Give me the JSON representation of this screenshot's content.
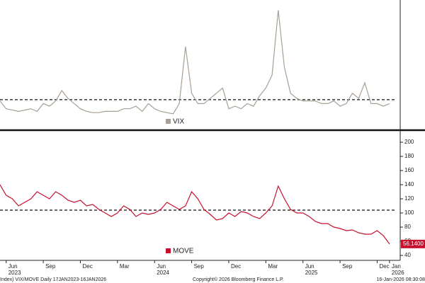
{
  "chart_data": [
    {
      "type": "line",
      "series": [
        {
          "name": "VIX",
          "color": "#a89f94",
          "values": [
            17,
            14,
            13.5,
            13,
            13.5,
            14,
            13,
            16,
            15,
            17,
            21,
            18,
            16,
            14,
            13,
            12.5,
            12.5,
            13,
            13,
            13,
            14,
            14,
            15,
            13,
            16,
            14,
            13,
            12.5,
            12,
            16,
            38,
            20,
            16,
            16,
            18,
            20,
            22,
            14,
            15,
            14,
            16,
            15,
            19,
            22,
            27,
            52,
            30,
            20,
            18,
            17,
            17,
            17,
            16,
            16,
            17,
            15,
            16,
            20,
            18,
            24,
            16,
            16,
            15,
            16
          ]
        }
      ],
      "reference_line": 17.5,
      "ylim": [
        6,
        56
      ]
    },
    {
      "type": "line",
      "series": [
        {
          "name": "MOVE",
          "color": "#c8102e",
          "values": [
            140,
            125,
            120,
            110,
            115,
            120,
            130,
            125,
            120,
            130,
            125,
            118,
            115,
            118,
            110,
            112,
            105,
            100,
            95,
            100,
            110,
            105,
            95,
            100,
            98,
            100,
            105,
            115,
            110,
            105,
            110,
            130,
            120,
            105,
            98,
            90,
            92,
            100,
            95,
            102,
            100,
            95,
            92,
            100,
            110,
            138,
            120,
            105,
            100,
            100,
            95,
            88,
            85,
            85,
            80,
            78,
            75,
            76,
            72,
            70,
            70,
            75,
            68,
            56.14
          ]
        }
      ],
      "last_value_label": "56.1400",
      "reference_line": 104,
      "ylim": [
        33,
        214
      ],
      "yticks": [
        40,
        60,
        80,
        100,
        120,
        140,
        160,
        180,
        200
      ],
      "xlim": [
        0,
        64.5
      ],
      "xticks": [
        {
          "value": 1,
          "label": "Jun"
        },
        {
          "value": 7,
          "label": "Sep"
        },
        {
          "value": 13,
          "label": "Dec"
        },
        {
          "value": 19,
          "label": "Mar"
        },
        {
          "value": 25,
          "label": "Jun"
        },
        {
          "value": 31,
          "label": "Sep"
        },
        {
          "value": 37,
          "label": "Dec"
        },
        {
          "value": 43,
          "label": "Mar"
        },
        {
          "value": 49,
          "label": "Jun"
        },
        {
          "value": 55,
          "label": "Sep"
        },
        {
          "value": 61,
          "label": "Dec"
        },
        {
          "value": 63,
          "label": "Jan"
        }
      ],
      "year_ticks": [
        {
          "value": 1,
          "label": "2023"
        },
        {
          "value": 25,
          "label": "2024"
        },
        {
          "value": 49,
          "label": "2025"
        },
        {
          "value": 63,
          "label": "2026"
        }
      ],
      "footer": [
        "Index) VIX/MOVE Daily 17JAN2023-16JAN2026",
        "Copyright© 2026 Bloomberg Finance L.P.",
        "16-Jan-2026 08:30:08"
      ]
    }
  ]
}
